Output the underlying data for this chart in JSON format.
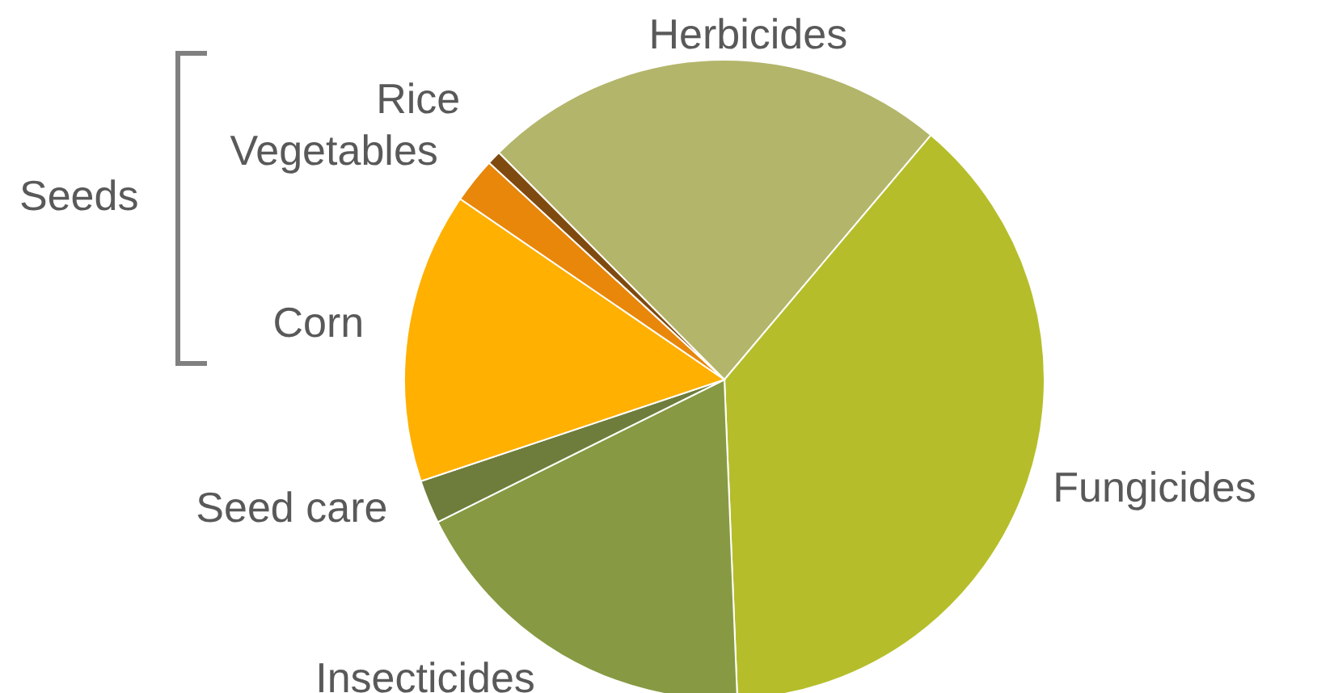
{
  "chart_data": {
    "type": "pie",
    "categories": [
      "Herbicides",
      "Fungicides",
      "Insecticides",
      "Seed care",
      "Corn",
      "Vegetables",
      "Rice"
    ],
    "values": [
      23.6,
      38.2,
      18.3,
      2.2,
      14.7,
      2.3,
      0.7
    ],
    "colors": [
      "#b3b56a",
      "#b5be2a",
      "#879a43",
      "#6e7d3b",
      "#ffb000",
      "#e8870a",
      "#7f4a10"
    ],
    "annotations": [
      "Seeds"
    ]
  }
}
